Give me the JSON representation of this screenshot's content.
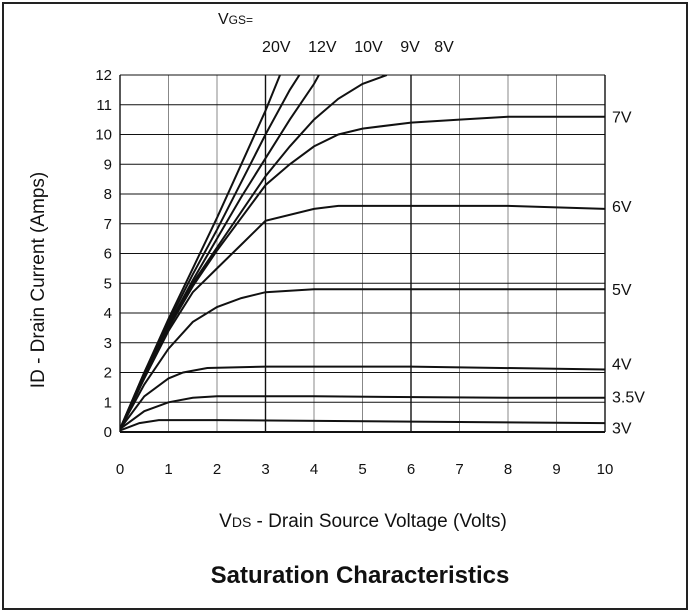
{
  "chart_data": {
    "type": "line",
    "title": "Saturation Characteristics",
    "xlabel_prefix": "V",
    "xlabel_sub": "DS",
    "xlabel_rest": " - Drain Source Voltage (Volts)",
    "ylabel": "ID - Drain Current (Amps)",
    "legend_header_main": "V",
    "legend_header_sub": "GS=",
    "xlim": [
      0,
      10
    ],
    "ylim": [
      0,
      12
    ],
    "x_ticks": [
      "0",
      "1",
      "2",
      "3",
      "4",
      "5",
      "6",
      "7",
      "8",
      "9",
      "10"
    ],
    "y_ticks": [
      "0",
      "1",
      "2",
      "3",
      "4",
      "5",
      "6",
      "7",
      "8",
      "9",
      "10",
      "11",
      "12"
    ],
    "grid": true,
    "series": [
      {
        "name": "20V",
        "label_pos": "top",
        "points": [
          [
            0,
            0.1
          ],
          [
            0.5,
            2.0
          ],
          [
            1,
            3.8
          ],
          [
            1.5,
            5.5
          ],
          [
            2,
            7.2
          ],
          [
            2.5,
            9.0
          ],
          [
            3,
            10.8
          ],
          [
            3.3,
            12.0
          ]
        ]
      },
      {
        "name": "12V",
        "label_pos": "top",
        "points": [
          [
            0,
            0.1
          ],
          [
            0.5,
            2.0
          ],
          [
            1,
            3.7
          ],
          [
            1.5,
            5.3
          ],
          [
            2,
            6.8
          ],
          [
            2.5,
            8.4
          ],
          [
            3,
            10.0
          ],
          [
            3.5,
            11.5
          ],
          [
            3.7,
            12.0
          ]
        ]
      },
      {
        "name": "10V",
        "label_pos": "top",
        "points": [
          [
            0,
            0.1
          ],
          [
            0.5,
            1.9
          ],
          [
            1,
            3.6
          ],
          [
            1.5,
            5.1
          ],
          [
            2,
            6.5
          ],
          [
            2.5,
            7.9
          ],
          [
            3,
            9.2
          ],
          [
            3.5,
            10.5
          ],
          [
            4,
            11.7
          ],
          [
            4.1,
            12.0
          ]
        ]
      },
      {
        "name": "9V",
        "label_pos": "top",
        "points": [
          [
            0,
            0.1
          ],
          [
            0.5,
            1.9
          ],
          [
            1,
            3.5
          ],
          [
            1.5,
            5.0
          ],
          [
            2,
            6.2
          ],
          [
            2.5,
            7.4
          ],
          [
            3,
            8.6
          ],
          [
            3.5,
            9.6
          ],
          [
            4,
            10.5
          ],
          [
            4.5,
            11.2
          ],
          [
            5,
            11.7
          ],
          [
            5.5,
            12.0
          ]
        ]
      },
      {
        "name": "8V",
        "label_pos": "top",
        "points": [
          [
            0,
            0.1
          ],
          [
            0.5,
            1.9
          ],
          [
            1,
            3.5
          ],
          [
            1.5,
            4.9
          ],
          [
            2,
            6.1
          ],
          [
            2.5,
            7.2
          ],
          [
            3,
            8.3
          ],
          [
            3.5,
            9.0
          ],
          [
            4,
            9.6
          ],
          [
            4.5,
            10.0
          ],
          [
            5,
            10.2
          ],
          [
            6,
            10.4
          ],
          [
            7,
            10.5
          ],
          [
            8,
            10.6
          ],
          [
            10,
            10.6
          ]
        ]
      },
      {
        "name": "7V",
        "label_pos": "right",
        "points": [
          [
            0,
            0.1
          ],
          [
            0.5,
            1.8
          ],
          [
            1,
            3.4
          ],
          [
            1.5,
            4.7
          ],
          [
            2,
            5.5
          ],
          [
            2.5,
            6.3
          ],
          [
            3,
            7.1
          ],
          [
            4,
            7.5
          ],
          [
            4.5,
            7.6
          ],
          [
            6,
            7.6
          ],
          [
            8,
            7.6
          ],
          [
            10,
            7.5
          ]
        ]
      },
      {
        "name": "6V",
        "label_pos": "right",
        "points": [
          [
            0,
            0.1
          ],
          [
            0.5,
            1.6
          ],
          [
            1,
            2.8
          ],
          [
            1.5,
            3.7
          ],
          [
            2,
            4.2
          ],
          [
            2.5,
            4.5
          ],
          [
            3,
            4.7
          ],
          [
            4,
            4.8
          ],
          [
            6,
            4.8
          ],
          [
            8,
            4.8
          ],
          [
            10,
            4.8
          ]
        ]
      },
      {
        "name": "5V",
        "label_pos": "right",
        "points": [
          [
            0,
            0.1
          ],
          [
            0.5,
            1.2
          ],
          [
            1,
            1.8
          ],
          [
            1.3,
            2.0
          ],
          [
            1.8,
            2.15
          ],
          [
            3,
            2.2
          ],
          [
            6,
            2.2
          ],
          [
            10,
            2.1
          ]
        ]
      },
      {
        "name": "4V",
        "label_pos": "right",
        "points": [
          [
            0,
            0.1
          ],
          [
            0.5,
            0.7
          ],
          [
            1,
            1.0
          ],
          [
            1.5,
            1.15
          ],
          [
            2,
            1.2
          ],
          [
            4,
            1.2
          ],
          [
            8,
            1.15
          ],
          [
            10,
            1.15
          ]
        ]
      },
      {
        "name": "3.5V",
        "label_pos": "right",
        "points": [
          [
            0,
            0.05
          ],
          [
            0.4,
            0.3
          ],
          [
            0.8,
            0.4
          ],
          [
            2,
            0.4
          ],
          [
            6,
            0.35
          ],
          [
            10,
            0.3
          ]
        ]
      },
      {
        "name": "3V",
        "label_pos": "right",
        "points": [
          [
            0,
            0.0
          ],
          [
            10,
            0.0
          ]
        ]
      }
    ],
    "right_labels_y": {
      "7V": 10.6,
      "6V": 7.6,
      "5V": 4.8,
      "4V": 2.3,
      "3.5V": 1.2,
      "3V": 0.15
    },
    "top_labels_x": {
      "20V": 3.3,
      "12V": 4.25,
      "10V": 5.2,
      "9V": 6.15,
      "8V": 6.85
    }
  }
}
